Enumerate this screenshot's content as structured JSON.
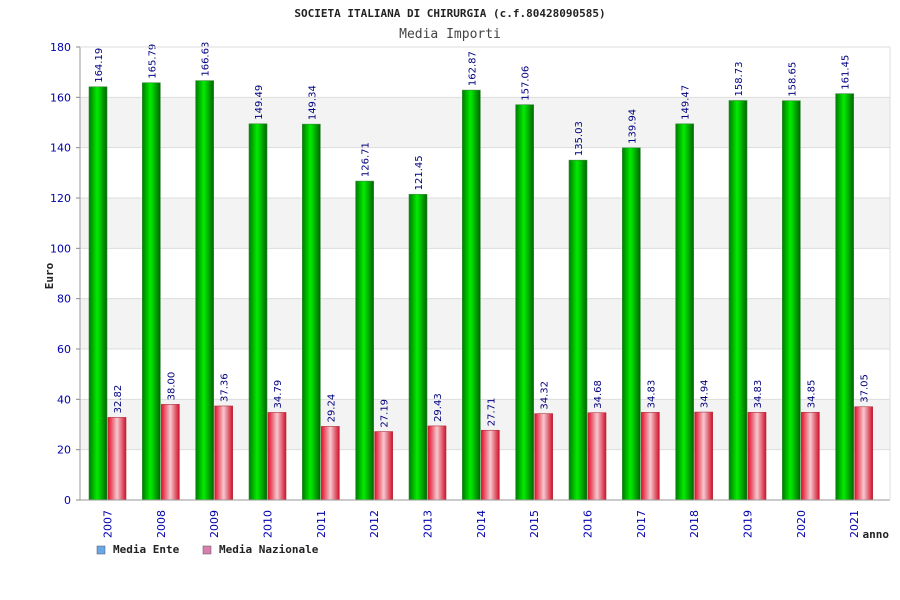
{
  "chart_data": {
    "type": "bar",
    "title": "SOCIETA ITALIANA DI CHIRURGIA (c.f.80428090585)",
    "subtitle": "Media Importi",
    "xlabel": "anno",
    "ylabel": "Euro",
    "ylim": [
      0,
      180
    ],
    "yticks": [
      0,
      20,
      40,
      60,
      80,
      100,
      120,
      140,
      160,
      180
    ],
    "categories": [
      "2007",
      "2008",
      "2009",
      "2010",
      "2011",
      "2012",
      "2013",
      "2014",
      "2015",
      "2016",
      "2017",
      "2018",
      "2019",
      "2020",
      "2021"
    ],
    "series": [
      {
        "name": "Media Ente",
        "color": "#00cc00",
        "values": [
          164.19,
          165.79,
          166.63,
          149.49,
          149.34,
          126.71,
          121.45,
          162.87,
          157.06,
          135.03,
          139.94,
          149.47,
          158.73,
          158.65,
          161.45
        ],
        "labels": [
          "164.19",
          "165.79",
          "166.63",
          "149.49",
          "149.34",
          "126.71",
          "121.45",
          "162.87",
          "157.06",
          "135.03",
          "139.94",
          "149.47",
          "158.73",
          "158.65",
          "161.45"
        ]
      },
      {
        "name": "Media Nazionale",
        "color": "#e8283c",
        "values": [
          32.82,
          38.0,
          37.36,
          34.79,
          29.24,
          27.19,
          29.43,
          27.71,
          34.32,
          34.68,
          34.83,
          34.94,
          34.83,
          34.85,
          37.05
        ],
        "labels": [
          "32.82",
          "38.00",
          "37.36",
          "34.79",
          "29.24",
          "27.19",
          "29.43",
          "27.71",
          "34.32",
          "34.68",
          "34.83",
          "34.94",
          "34.83",
          "34.85",
          "37.05"
        ]
      }
    ],
    "legend": [
      {
        "name": "Media Ente",
        "color": "#6aa7e8"
      },
      {
        "name": "Media Nazionale",
        "color": "#d97fb0"
      }
    ],
    "grid": true,
    "legend_position": "bottom-left"
  }
}
